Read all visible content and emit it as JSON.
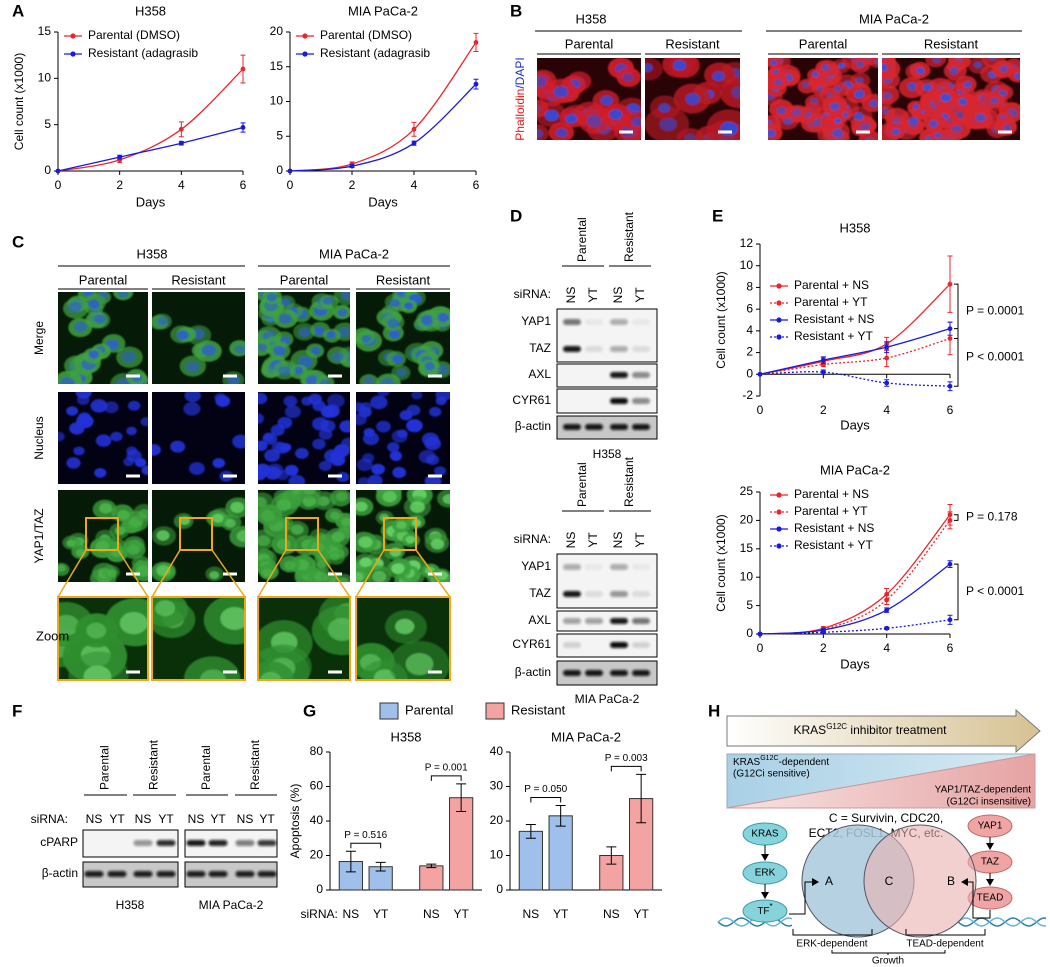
{
  "panel_labels": [
    "A",
    "B",
    "C",
    "D",
    "E",
    "F",
    "G",
    "H"
  ],
  "chart_data": [
    {
      "type": "line",
      "title": "H358",
      "xlabel": "Days",
      "ylabel": "Cell count (x1000)",
      "x": [
        0,
        2,
        4,
        6
      ],
      "xlim": [
        0,
        6
      ],
      "xticks": [
        0,
        2,
        4,
        6
      ],
      "ylim": [
        0,
        15
      ],
      "yticks": [
        0,
        5,
        10,
        15
      ],
      "series": [
        {
          "name": "Parental (DMSO)",
          "color": "#e8262b",
          "values": [
            0,
            1.2,
            4.5,
            11
          ],
          "errors": [
            0,
            0.3,
            0.8,
            1.5
          ]
        },
        {
          "name": "Resistant (adagrasib",
          "color": "#1a1adb",
          "values": [
            0,
            1.5,
            3,
            4.7
          ],
          "errors": [
            0,
            0.2,
            0.2,
            0.5
          ]
        }
      ]
    },
    {
      "type": "line",
      "title": "MIA PaCa-2",
      "xlabel": "Days",
      "x": [
        0,
        2,
        4,
        6
      ],
      "xlim": [
        0,
        6
      ],
      "xticks": [
        0,
        2,
        4,
        6
      ],
      "ylim": [
        0,
        20
      ],
      "yticks": [
        0,
        5,
        10,
        15,
        20
      ],
      "series": [
        {
          "name": "Parental (DMSO)",
          "color": "#e8262b",
          "values": [
            0,
            1,
            6,
            18.5
          ],
          "errors": [
            0,
            0.3,
            1,
            1.3
          ]
        },
        {
          "name": "Resistant (adagrasib",
          "color": "#1a1adb",
          "values": [
            0,
            0.7,
            4,
            12.5
          ],
          "errors": [
            0,
            0.2,
            0.3,
            0.7
          ]
        }
      ]
    },
    {
      "type": "line",
      "title": "H358",
      "xlabel": "Days",
      "ylabel": "Cell count (x1000)",
      "x": [
        0,
        2,
        4,
        6
      ],
      "xlim": [
        0,
        6
      ],
      "xticks": [
        0,
        2,
        4,
        6
      ],
      "ylim": [
        -2,
        12
      ],
      "yticks": [
        -2,
        0,
        2,
        4,
        6,
        8,
        10,
        12
      ],
      "series": [
        {
          "name": "Parental + NS",
          "color": "#e8262b",
          "linestyle": "solid",
          "values": [
            0,
            1.2,
            2.8,
            8.3
          ],
          "errors": [
            0,
            0.3,
            0.6,
            2.6
          ]
        },
        {
          "name": "Parental + YT",
          "color": "#e8262b",
          "linestyle": "dotted",
          "values": [
            0,
            0.9,
            1.5,
            3.3
          ],
          "errors": [
            0,
            0.2,
            0.8,
            1.5
          ]
        },
        {
          "name": "Resistant + NS",
          "color": "#1a1adb",
          "linestyle": "solid",
          "values": [
            0,
            1.3,
            2.5,
            4.2
          ],
          "errors": [
            0,
            0.3,
            0.5,
            0.6
          ]
        },
        {
          "name": "Resistant + YT",
          "color": "#1a1adb",
          "linestyle": "dotted",
          "values": [
            0,
            0.2,
            -0.8,
            -1.1
          ],
          "errors": [
            0,
            0.2,
            0.3,
            0.4
          ]
        }
      ],
      "annotations": [
        "P = 0.0001",
        "P < 0.0001"
      ]
    },
    {
      "type": "line",
      "title": "MIA PaCa-2",
      "xlabel": "Days",
      "ylabel": "Cell count (x1000)",
      "x": [
        0,
        2,
        4,
        6
      ],
      "xlim": [
        0,
        6
      ],
      "xticks": [
        0,
        2,
        4,
        6
      ],
      "ylim": [
        0,
        25
      ],
      "yticks": [
        0,
        5,
        10,
        15,
        20,
        25
      ],
      "series": [
        {
          "name": "Parental + NS",
          "color": "#e8262b",
          "linestyle": "solid",
          "values": [
            0,
            1,
            7,
            21
          ],
          "errors": [
            0,
            0.3,
            1,
            1.8
          ]
        },
        {
          "name": "Parental + YT",
          "color": "#e8262b",
          "linestyle": "dotted",
          "values": [
            0,
            0.8,
            6,
            20
          ],
          "errors": [
            0,
            0.2,
            0.8,
            1.5
          ]
        },
        {
          "name": "Resistant + NS",
          "color": "#1a1adb",
          "linestyle": "solid",
          "values": [
            0,
            0.7,
            4.2,
            12.3
          ],
          "errors": [
            0,
            0.2,
            0.4,
            0.6
          ]
        },
        {
          "name": "Resistant + YT",
          "color": "#1a1adb",
          "linestyle": "dotted",
          "values": [
            0,
            0.3,
            1,
            2.5
          ],
          "errors": [
            0,
            0.1,
            0.2,
            0.8
          ]
        }
      ],
      "annotations": [
        "P = 0.178",
        "P < 0.0001"
      ]
    },
    {
      "type": "bar",
      "title": "H358",
      "ylabel": "Apoptosis (%)",
      "xlabel": "siRNA:",
      "categories": [
        "NS",
        "YT",
        "NS",
        "YT"
      ],
      "ylim": [
        0,
        80
      ],
      "yticks": [
        0,
        20,
        40,
        60,
        80
      ],
      "series": [
        {
          "name": "Parental",
          "color": "#9fc0ea",
          "values": [
            16.5,
            13.5,
            null,
            null
          ],
          "errors": [
            6,
            2.5,
            null,
            null
          ]
        },
        {
          "name": "Resistant",
          "color": "#f4a3a3",
          "values": [
            null,
            null,
            14,
            53.5
          ],
          "errors": [
            null,
            null,
            1,
            8
          ]
        }
      ],
      "annotations": [
        "P = 0.516",
        "P = 0.001"
      ]
    },
    {
      "type": "bar",
      "title": "MIA PaCa-2",
      "categories": [
        "NS",
        "YT",
        "NS",
        "YT"
      ],
      "ylim": [
        0,
        40
      ],
      "yticks": [
        0,
        10,
        20,
        30,
        40
      ],
      "series": [
        {
          "color": "#9fc0ea",
          "values": [
            17,
            21.5,
            null,
            null
          ],
          "errors": [
            2,
            3,
            null,
            null
          ]
        },
        {
          "color": "#f4a3a3",
          "values": [
            null,
            null,
            10,
            26.5
          ],
          "errors": [
            null,
            null,
            2.5,
            7
          ]
        }
      ],
      "annotations": [
        "P = 0.050",
        "P = 0.003"
      ]
    }
  ],
  "panel_b": {
    "cell_lines": [
      "H358",
      "MIA PaCa-2"
    ],
    "conditions": [
      "Parental",
      "Resistant",
      "Parental",
      "Resistant"
    ],
    "stain": [
      "Phalloidin",
      "/DAPI"
    ]
  },
  "panel_c": {
    "cell_lines": [
      "H358",
      "MIA PaCa-2"
    ],
    "conditions": [
      "Parental",
      "Resistant",
      "Parental",
      "Resistant"
    ],
    "rows": [
      "Merge",
      "Nucleus",
      "YAP1/TAZ",
      "Zoom"
    ]
  },
  "panel_d": {
    "blots": [
      {
        "cell_line": "H358",
        "conditions": [
          "Parental",
          "Resistant"
        ],
        "sirna_label": "siRNA:",
        "sirna": [
          "NS",
          "YT",
          "NS",
          "YT"
        ],
        "proteins": [
          "YAP1",
          "TAZ",
          "AXL",
          "CYR61",
          "β-actin"
        ]
      },
      {
        "cell_line": "MIA PaCa-2",
        "conditions": [
          "Parental",
          "Resistant"
        ],
        "sirna_label": "siRNA:",
        "sirna": [
          "NS",
          "YT",
          "NS",
          "YT"
        ],
        "proteins": [
          "YAP1",
          "TAZ",
          "AXL",
          "CYR61",
          "β-actin"
        ]
      }
    ]
  },
  "panel_f": {
    "conditions": [
      "Parental",
      "Resistant",
      "Parental",
      "Resistant"
    ],
    "sirna_label": "siRNA:",
    "sirna": [
      "NS",
      "YT",
      "NS",
      "YT",
      "NS",
      "YT",
      "NS",
      "YT"
    ],
    "proteins": [
      "cPARP",
      "β-actin"
    ],
    "cell_lines": [
      "H358",
      "MIA PaCa-2"
    ]
  },
  "panel_h": {
    "treatment": {
      "gene": "KRAS",
      "sup": "G12C",
      "rest": " inhibitor treatment"
    },
    "left_state": {
      "gene": "KRAS",
      "sup": "G12C",
      "rest": "-dependent",
      "note": "(G12Ci sensitive)"
    },
    "right_state": {
      "text": "YAP1/TAZ-dependent",
      "note": "(G12Ci insensitive)"
    },
    "targets": [
      "C = Survivin, CDC20,",
      "ECT2, FOSL1, MYC, etc."
    ],
    "left_pathway": [
      "KRAS",
      "ERK",
      "TF"
    ],
    "tf_mark": "*",
    "right_pathway": [
      "YAP1",
      "TAZ",
      "TEAD"
    ],
    "sets": [
      "A",
      "C",
      "B"
    ],
    "outputs": [
      "ERK-dependent",
      "TEAD-dependent"
    ],
    "outcome": "Growth"
  }
}
